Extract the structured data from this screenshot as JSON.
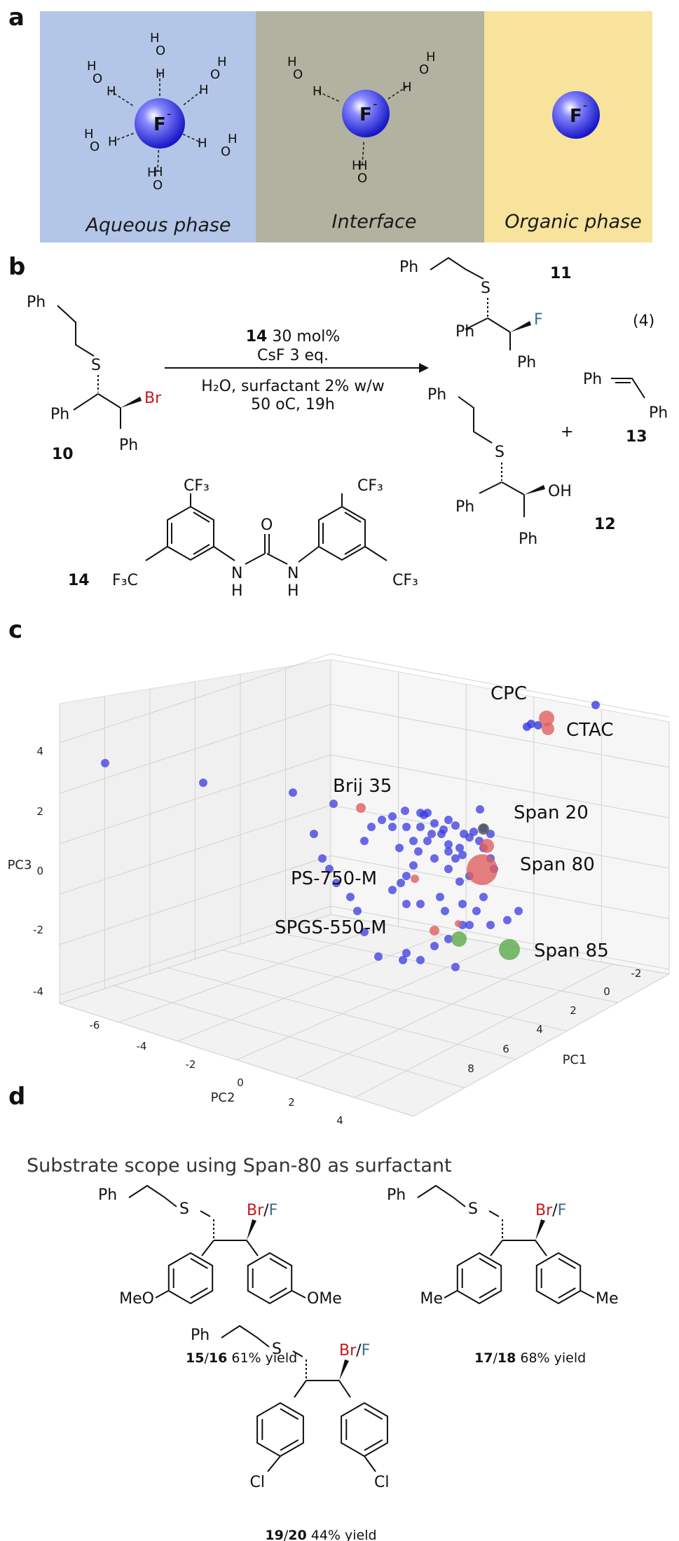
{
  "panels": {
    "a": {
      "letter": "a",
      "phases": [
        {
          "label": "Aqueous phase",
          "color": "#b4c6e7"
        },
        {
          "label": "Interface",
          "color": "#b2b2a0"
        },
        {
          "label": "Organic phase",
          "color": "#f7e39c"
        }
      ],
      "ion_label": "F",
      "ion_charge": "-",
      "water_o": "O",
      "water_h": "H"
    },
    "b": {
      "letter": "b",
      "reactant": {
        "number": "10",
        "ph": "Ph",
        "s": "S",
        "br": "Br"
      },
      "conditions": {
        "catalyst_num": "14",
        "catalyst_amt": " 30 mol%",
        "base": "CsF 3 eq.",
        "solvent": "H₂O, surfactant 2% w/w",
        "temp": "50 oC, 19h"
      },
      "equation_number": "(4)",
      "plus": "+",
      "products": [
        {
          "number": "11",
          "x": "F"
        },
        {
          "number": "12",
          "x": "OH"
        },
        {
          "number": "13"
        }
      ],
      "catalyst": {
        "number": "14",
        "cf3": "CF₃",
        "f3c": "F₃C",
        "o": "O",
        "nh": "H",
        "n": "N"
      }
    },
    "c": {
      "letter": "c"
    },
    "d": {
      "letter": "d",
      "title": "Substrate scope using Span-80 as surfactant",
      "substrates": [
        {
          "compound": "15/16",
          "num_a": "15",
          "num_b": "16",
          "yield": "61% yield",
          "group": "MeO",
          "group2": "OMe"
        },
        {
          "compound": "17/18",
          "num_a": "17",
          "num_b": "18",
          "yield": "68% yield",
          "group": "Me",
          "group2": "Me"
        },
        {
          "compound": "19/20",
          "num_a": "19",
          "num_b": "20",
          "yield": "44% yield",
          "group": "Cl",
          "group2": "Cl"
        }
      ],
      "halide_br": "Br",
      "halide_sep": "/",
      "halide_f": "F"
    }
  },
  "chart_data": {
    "type": "scatter3d",
    "axis_labels": {
      "x": "PC2",
      "y": "PC1",
      "z": "PC3"
    },
    "x_ticks": [
      -6,
      -4,
      -2,
      0,
      2,
      4
    ],
    "y_ticks": [
      -2,
      0,
      2,
      4,
      6,
      8
    ],
    "z_ticks": [
      -4,
      -2,
      0,
      2,
      4
    ],
    "labeled_points": [
      {
        "name": "CPC",
        "pc1": -2.2,
        "pc2": 3.5,
        "pc3": 3.2,
        "size": "medium",
        "color": "red"
      },
      {
        "name": "CTAC",
        "pc1": -2.0,
        "pc2": 3.7,
        "pc3": 3.0,
        "size": "small",
        "color": "red"
      },
      {
        "name": "Brij 35",
        "pc1": 2.5,
        "pc2": -0.5,
        "pc3": 1.8,
        "size": "small",
        "color": "red"
      },
      {
        "name": "Span 20",
        "pc1": 2.5,
        "pc2": 2.2,
        "pc3": 1.6,
        "size": "medium",
        "color": "red"
      },
      {
        "name": "Span 80",
        "pc1": 3.0,
        "pc2": 2.0,
        "pc3": 0.5,
        "size": "large",
        "color": "red"
      },
      {
        "name": "PS-750-M",
        "pc1": 3.5,
        "pc2": 0.5,
        "pc3": 0.2,
        "size": "small",
        "color": "red"
      },
      {
        "name": "SPGS-550-M",
        "pc1": 5.5,
        "pc2": 1.0,
        "pc3": -1.2,
        "size": "small",
        "color": "red"
      },
      {
        "name": "Span 85",
        "pc1": 4.5,
        "pc2": 2.8,
        "pc3": -1.8,
        "size": "large",
        "color": "green"
      }
    ],
    "point_colors": {
      "screened": "#3a3ae0",
      "tested": "#e06060",
      "other": "#5aaa4a"
    }
  }
}
